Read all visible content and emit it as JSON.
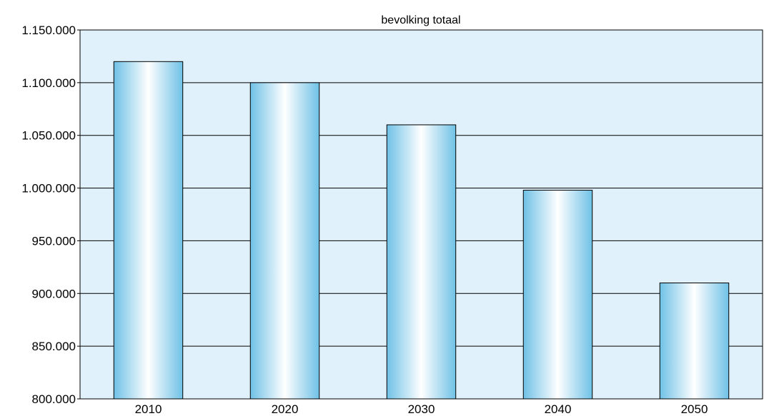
{
  "chart_data": {
    "type": "bar",
    "title": "bevolking totaal",
    "xlabel": "",
    "ylabel": "",
    "categories": [
      "2010",
      "2020",
      "2030",
      "2040",
      "2050"
    ],
    "values": [
      1120000,
      1100000,
      1060000,
      998000,
      910000
    ],
    "ylim": [
      800000,
      1150000
    ],
    "yticks": [
      800000,
      850000,
      900000,
      950000,
      1000000,
      1050000,
      1100000,
      1150000
    ],
    "ytick_labels": [
      "800.000",
      "850.000",
      "900.000",
      "950.000",
      "1.000.000",
      "1.050.000",
      "1.100.000",
      "1.150.000"
    ],
    "grid": true,
    "legend": "none",
    "colors": {
      "plot_background": "#e1f1fb",
      "bar_edge": "#6fc1e6",
      "bar_center": "#ffffff",
      "outline": "#000000"
    }
  }
}
